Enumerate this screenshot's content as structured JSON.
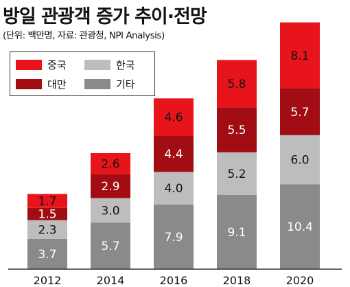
{
  "title": "방일 관광객 증가 추이·전망",
  "subtitle": "(단위: 백만명, 자료: 관광청, NPI Analysis)",
  "colors": {
    "china": "#e8141b",
    "korea": "#bdbdbd",
    "taiwan": "#a10d12",
    "other": "#8a8a8a",
    "axis": "#333333"
  },
  "legend": [
    {
      "label": "중국",
      "color": "#e8141b"
    },
    {
      "label": "한국",
      "color": "#bdbdbd"
    },
    {
      "label": "대만",
      "color": "#a10d12"
    },
    {
      "label": "기타",
      "color": "#8a8a8a"
    }
  ],
  "chart_data": {
    "type": "bar",
    "stacked": true,
    "categories": [
      "2012",
      "2014",
      "2016",
      "2018",
      "2020"
    ],
    "series": [
      {
        "name": "기타",
        "values": [
          3.7,
          5.7,
          7.9,
          9.1,
          10.4
        ]
      },
      {
        "name": "한국",
        "values": [
          2.3,
          3.0,
          4.0,
          5.2,
          6.0
        ]
      },
      {
        "name": "대만",
        "values": [
          1.5,
          2.9,
          4.4,
          5.5,
          5.7
        ]
      },
      {
        "name": "중국",
        "values": [
          1.7,
          2.6,
          4.6,
          5.8,
          8.1
        ]
      }
    ],
    "value_labels": [
      [
        "3.7",
        "5.7",
        "7.9",
        "9.1",
        "10.4"
      ],
      [
        "2.3",
        "3.0",
        "4.0",
        "5.2",
        "6.0"
      ],
      [
        "1.5",
        "2.9",
        "4.4",
        "5.5",
        "5.7"
      ],
      [
        "1.7",
        "2.6",
        "4.6",
        "5.8",
        "8.1"
      ]
    ],
    "title": "방일 관광객 증가 추이·전망",
    "xlabel": "",
    "ylabel": "",
    "ylim": [
      0,
      30
    ],
    "grid": false,
    "legend_position": "top-left"
  }
}
